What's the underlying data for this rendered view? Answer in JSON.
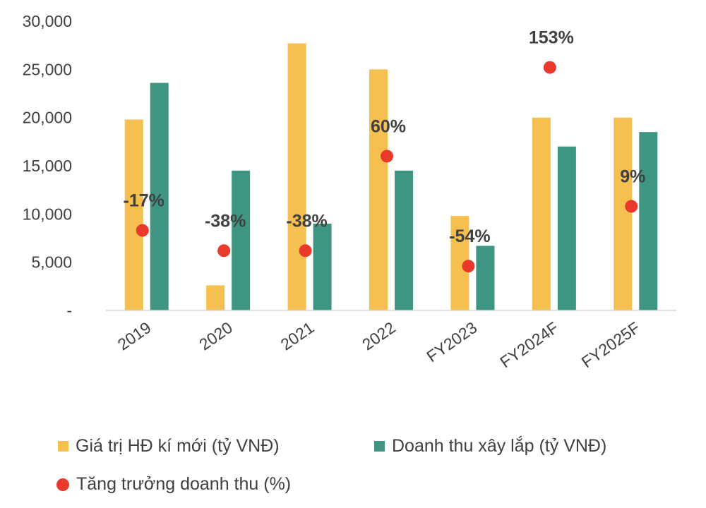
{
  "chart_data": {
    "type": "bar",
    "categories": [
      "2019",
      "2020",
      "2021",
      "2022",
      "FY2023",
      "FY2024F",
      "FY2025F"
    ],
    "ylim": [
      0,
      30000
    ],
    "yticks": [
      0,
      5000,
      10000,
      15000,
      20000,
      25000,
      30000
    ],
    "ytick_labels": [
      "-",
      "5,000",
      "10,000",
      "15,000",
      "20,000",
      "25,000",
      "30,000"
    ],
    "series": [
      {
        "name": "Giá trị HĐ kí mới (tỷ VNĐ)",
        "type": "bar",
        "color": "#F5C04F",
        "values": [
          19800,
          2600,
          27700,
          25000,
          9800,
          20000,
          20000
        ]
      },
      {
        "name": "Doanh thu xây lắp (tỷ VNĐ)",
        "type": "bar",
        "color": "#3E9682",
        "values": [
          23600,
          14500,
          9000,
          14500,
          6700,
          17000,
          18500
        ]
      },
      {
        "name": "Tăng trưởng doanh thu (%)",
        "type": "scatter",
        "color": "#E8392B",
        "values": [
          -17,
          -38,
          -38,
          60,
          -54,
          153,
          9
        ],
        "labels": [
          "-17%",
          "-38%",
          "-38%",
          "60%",
          "-54%",
          "153%",
          "9%"
        ],
        "plot_positions": [
          8300,
          6200,
          6200,
          16000,
          4600,
          25200,
          10800
        ]
      }
    ],
    "grid": false,
    "legend_position": "bottom"
  }
}
